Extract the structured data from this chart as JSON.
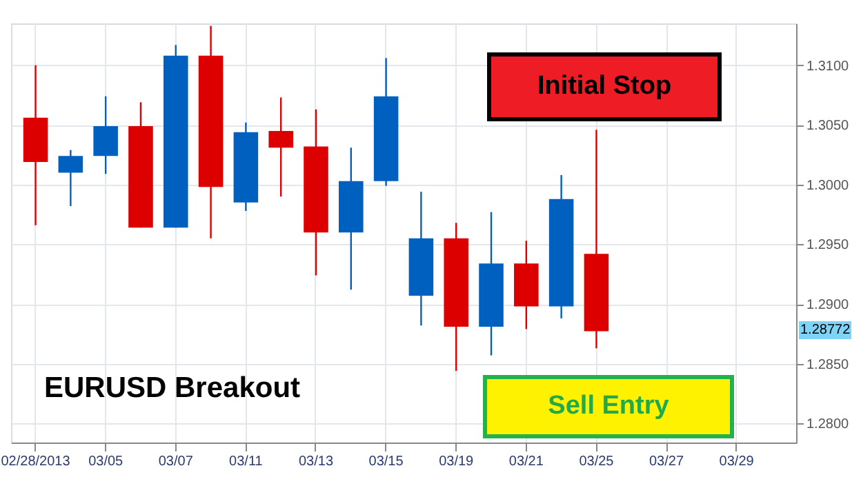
{
  "chart_data": {
    "type": "candlestick",
    "categories": [
      "02/28/2013",
      null,
      "03/05",
      null,
      "03/07",
      null,
      "03/11",
      null,
      "03/13",
      null,
      "03/15",
      null,
      "03/19",
      null,
      "03/21",
      null,
      "03/25",
      null,
      "03/27",
      null,
      "03/29",
      null
    ],
    "ohlc": [
      [
        1.3056,
        1.31,
        1.2966,
        1.3019
      ],
      [
        1.301,
        1.3029,
        1.2982,
        1.3024
      ],
      [
        1.3024,
        1.3074,
        1.3009,
        1.3049
      ],
      [
        1.3049,
        1.3069,
        1.2964,
        1.2964
      ],
      [
        1.2964,
        1.3117,
        1.2964,
        1.3108
      ],
      [
        1.3108,
        1.3133,
        1.2955,
        1.2998
      ],
      [
        1.2985,
        1.3052,
        1.2978,
        1.3044
      ],
      [
        1.3045,
        1.3073,
        1.299,
        1.3031
      ],
      [
        1.3032,
        1.3063,
        1.2924,
        1.296
      ],
      [
        1.296,
        1.3031,
        1.2912,
        1.3003
      ],
      [
        1.3003,
        1.3106,
        1.2999,
        1.3074
      ],
      [
        1.2907,
        1.2994,
        1.2882,
        1.2955
      ],
      [
        1.2955,
        1.2968,
        1.2844,
        1.2881
      ],
      [
        1.2881,
        1.2977,
        1.2857,
        1.2934
      ],
      [
        1.2934,
        1.2953,
        1.2879,
        1.2898
      ],
      [
        1.2898,
        1.3008,
        1.2888,
        1.2988
      ],
      [
        1.2942,
        1.3046,
        1.2863,
        1.28772
      ],
      null,
      null,
      null,
      null,
      null
    ],
    "colors": [
      "#dd0000",
      "#0060bf",
      "#0060bf",
      "#dd0000",
      "#0060bf",
      "#dd0000",
      "#0060bf",
      "#dd0000",
      "#dd0000",
      "#0060bf",
      "#0060bf",
      "#0060bf",
      "#dd0000",
      "#0060bf",
      "#dd0000",
      "#0060bf",
      "#dd0000",
      null,
      null,
      null,
      null,
      null
    ],
    "ylim": [
      1.2784,
      1.3135
    ],
    "yticks": [
      {
        "value": 1.28,
        "label": "1.2800"
      },
      {
        "value": 1.285,
        "label": "1.2850"
      },
      {
        "value": 1.29,
        "label": "1.2900"
      },
      {
        "value": 1.295,
        "label": "1.2950"
      },
      {
        "value": 1.3,
        "label": "1.3000"
      },
      {
        "value": 1.305,
        "label": "1.3050"
      },
      {
        "value": 1.31,
        "label": "1.3100"
      }
    ],
    "grid": true,
    "annotations": [
      "EURUSD Breakout",
      "Initial Stop",
      "Sell Entry",
      {
        "text": "1.28772",
        "y": 1.28772
      }
    ]
  }
}
